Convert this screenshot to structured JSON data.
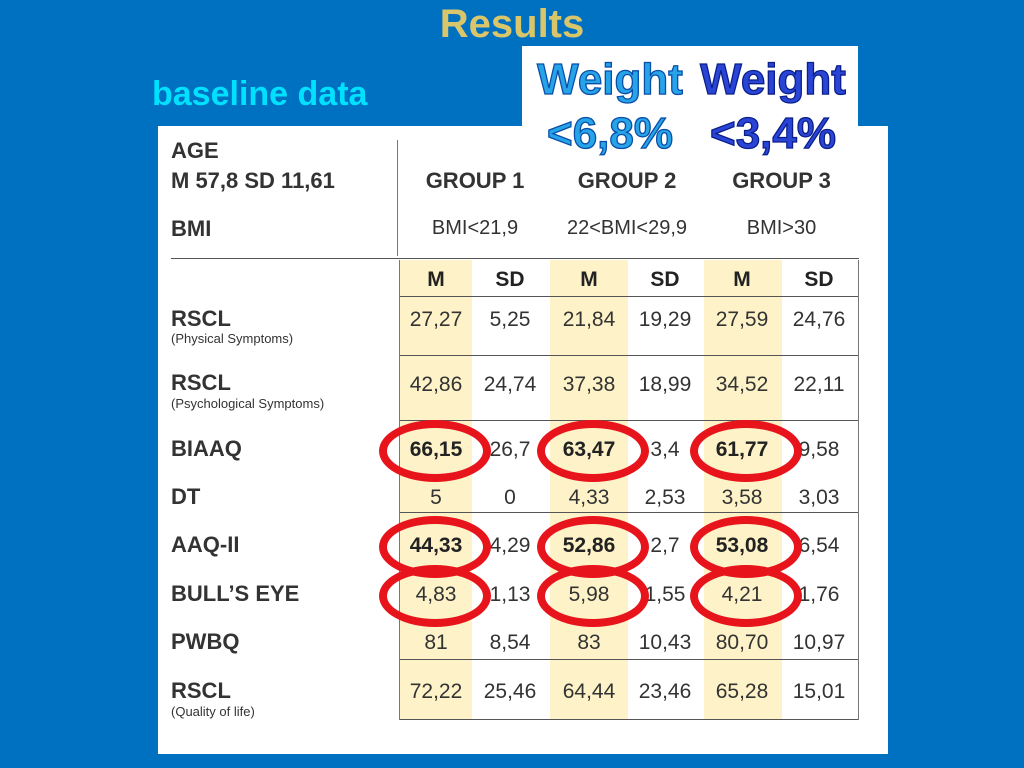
{
  "slide": {
    "title": "Results",
    "subtitle": "baseline data"
  },
  "callouts": {
    "group2_line1": "Weight",
    "group2_line2": "<6,8%",
    "group3_line1": "Weight",
    "group3_line2": "<3,4%"
  },
  "table": {
    "age_label": "AGE",
    "age_stats": "M 57,8 SD 11,61",
    "bmi_label": "BMI",
    "groups": [
      {
        "name": "GROUP 1",
        "bmi": "BMI<21,9"
      },
      {
        "name": "GROUP 2",
        "bmi": "22<BMI<29,9"
      },
      {
        "name": "GROUP 3",
        "bmi": "BMI>30"
      }
    ],
    "stat_headers": [
      "M",
      "SD",
      "M",
      "SD",
      "M",
      "SD"
    ],
    "rows": [
      {
        "label": "RSCL",
        "sublabel": "(Physical Symptoms)",
        "values": [
          "27,27",
          "5,25",
          "21,84",
          "19,29",
          "27,59",
          "24,76"
        ]
      },
      {
        "label": "RSCL",
        "sublabel": "(Psychological Symptoms)",
        "values": [
          "42,86",
          "24,74",
          "37,38",
          "18,99",
          "34,52",
          "22,11"
        ]
      },
      {
        "label": "BIAAQ",
        "sublabel": "",
        "values": [
          "66,15",
          "26,7",
          "63,47",
          "3,4",
          "61,77",
          "9,58"
        ]
      },
      {
        "label": "DT",
        "sublabel": "",
        "values": [
          "5",
          "0",
          "4,33",
          "2,53",
          "3,58",
          "3,03"
        ]
      },
      {
        "label": "AAQ-II",
        "sublabel": "",
        "values": [
          "44,33",
          "4,29",
          "52,86",
          "2,7",
          "53,08",
          "6,54"
        ]
      },
      {
        "label": "BULL’S EYE",
        "sublabel": "",
        "values": [
          "4,83",
          "1,13",
          "5,98",
          "1,55",
          "4,21",
          "1,76"
        ]
      },
      {
        "label": "PWBQ",
        "sublabel": "",
        "values": [
          "81",
          "8,54",
          "83",
          "10,43",
          "80,70",
          "10,97"
        ]
      },
      {
        "label": "RSCL",
        "sublabel": "(Quality of life)",
        "values": [
          "72,22",
          "25,46",
          "64,44",
          "23,46",
          "65,28",
          "15,01"
        ]
      }
    ]
  },
  "highlight_color": "#fdf2c8",
  "ring_color": "#e8141c",
  "background_color": "#0070c0"
}
